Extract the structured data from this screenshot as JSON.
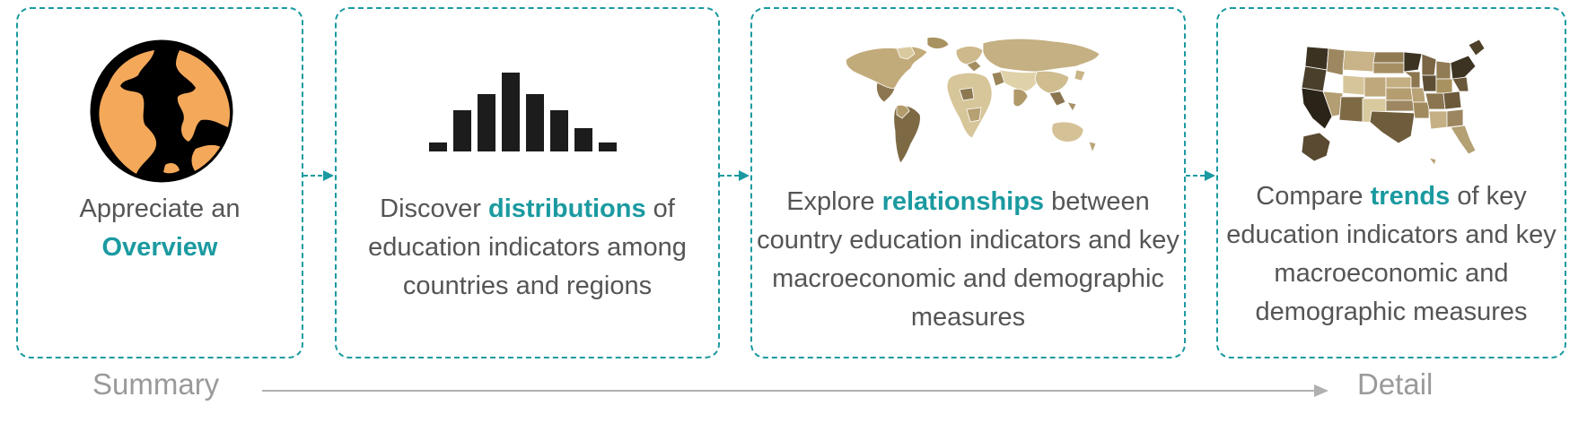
{
  "steps": [
    {
      "pre": "Appreciate an",
      "highlight": "Overview",
      "post": "",
      "icon": "globe-icon"
    },
    {
      "pre": "Discover",
      "highlight": "distributions",
      "post": "of education indicators among countries and regions",
      "icon": "histogram-icon"
    },
    {
      "pre": "Explore",
      "highlight": "relationships",
      "post": "between country education indicators and key macroeconomic and demographic measures",
      "icon": "world-map-icon"
    },
    {
      "pre": "Compare",
      "highlight": "trends",
      "post": "of key education indicators and key macroeconomic and demographic measures",
      "icon": "us-map-icon"
    }
  ],
  "axis": {
    "start_label": "Summary",
    "end_label": "Detail"
  },
  "colors": {
    "accent": "#1a9aa0",
    "text": "#555555",
    "axis": "#9a9a9a",
    "globe_land": "#f4a85a",
    "map_tan": "#c8b488"
  }
}
